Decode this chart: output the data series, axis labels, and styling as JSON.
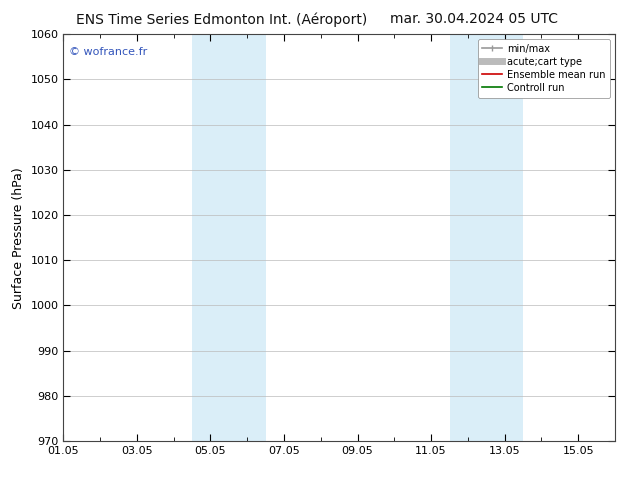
{
  "title_left": "ENS Time Series Edmonton Int. (Aéroport)",
  "title_right": "mar. 30.04.2024 05 UTC",
  "ylabel": "Surface Pressure (hPa)",
  "ylim": [
    970,
    1060
  ],
  "yticks": [
    970,
    980,
    990,
    1000,
    1010,
    1020,
    1030,
    1040,
    1050,
    1060
  ],
  "xlim": [
    0,
    15
  ],
  "xtick_labels": [
    "01.05",
    "03.05",
    "05.05",
    "07.05",
    "09.05",
    "11.05",
    "13.05",
    "15.05"
  ],
  "xtick_positions": [
    0,
    2,
    4,
    6,
    8,
    10,
    12,
    14
  ],
  "watermark": "© wofrance.fr",
  "shaded_bands": [
    {
      "x_start": 3.5,
      "x_end": 5.5,
      "color": "#daeef8"
    },
    {
      "x_start": 10.5,
      "x_end": 12.5,
      "color": "#daeef8"
    }
  ],
  "legend_entries": [
    {
      "label": "min/max",
      "color": "#999999",
      "lw": 1.2,
      "ls": "-"
    },
    {
      "label": "acute;cart type",
      "color": "#bbbbbb",
      "lw": 5,
      "ls": "-"
    },
    {
      "label": "Ensemble mean run",
      "color": "#cc0000",
      "lw": 1.2,
      "ls": "-"
    },
    {
      "label": "Controll run",
      "color": "#007700",
      "lw": 1.2,
      "ls": "-"
    }
  ],
  "bg_color": "#ffffff",
  "plot_bg_color": "#ffffff",
  "grid_color": "#bbbbbb",
  "title_fontsize": 10,
  "label_fontsize": 9,
  "tick_fontsize": 8,
  "legend_fontsize": 7,
  "watermark_color": "#3355bb"
}
